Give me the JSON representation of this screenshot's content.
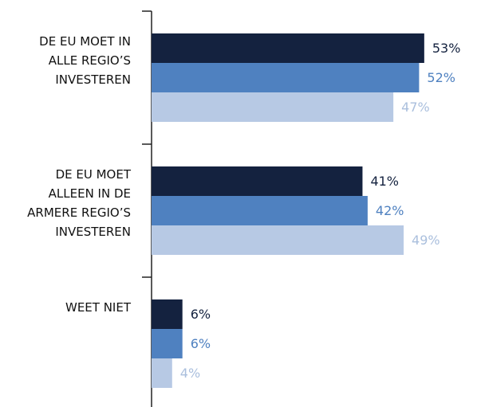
{
  "chart_data": {
    "type": "bar",
    "orientation": "horizontal",
    "categories": [
      "DE EU MOET IN ALLE REGIO’S INVESTEREN",
      "DE EU MOET ALLEEN IN DE ARMERE REGIO’S INVESTEREN",
      "WEET NIET"
    ],
    "series": [
      {
        "color": "#14223f",
        "label_color": "#14223f",
        "values": [
          53,
          41,
          6
        ],
        "value_labels": [
          "53%",
          "41%",
          "6%"
        ]
      },
      {
        "color": "#4f81c0",
        "label_color": "#4f81c0",
        "values": [
          52,
          42,
          6
        ],
        "value_labels": [
          "52%",
          "42%",
          "6%"
        ]
      },
      {
        "color": "#b7c9e4",
        "label_color": "#aabfdd",
        "values": [
          47,
          49,
          4
        ],
        "value_labels": [
          "47%",
          "49%",
          "4%"
        ]
      }
    ]
  }
}
